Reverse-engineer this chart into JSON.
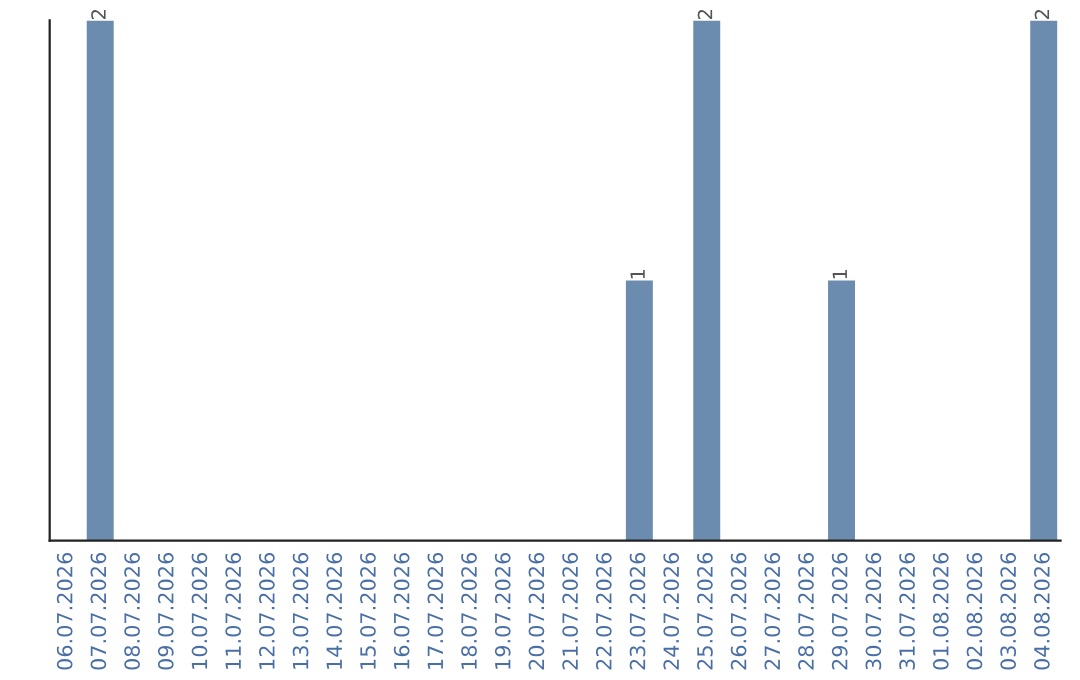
{
  "chart_data": {
    "type": "bar",
    "categories": [
      "06.07.2026",
      "07.07.2026",
      "08.07.2026",
      "09.07.2026",
      "10.07.2026",
      "11.07.2026",
      "12.07.2026",
      "13.07.2026",
      "14.07.2026",
      "15.07.2026",
      "16.07.2026",
      "17.07.2026",
      "18.07.2026",
      "19.07.2026",
      "20.07.2026",
      "21.07.2026",
      "22.07.2026",
      "23.07.2026",
      "24.07.2026",
      "25.07.2026",
      "26.07.2026",
      "27.07.2026",
      "28.07.2026",
      "29.07.2026",
      "30.07.2026",
      "31.07.2026",
      "01.08.2026",
      "02.08.2026",
      "03.08.2026",
      "04.08.2026"
    ],
    "values": [
      0,
      2,
      0,
      0,
      0,
      0,
      0,
      0,
      0,
      0,
      0,
      0,
      0,
      0,
      0,
      0,
      0,
      1,
      0,
      2,
      0,
      0,
      0,
      1,
      0,
      0,
      0,
      0,
      0,
      2
    ],
    "value_labels": [
      null,
      "2",
      null,
      null,
      null,
      null,
      null,
      null,
      null,
      null,
      null,
      null,
      null,
      null,
      null,
      null,
      null,
      "1",
      null,
      "2",
      null,
      null,
      null,
      "1",
      null,
      null,
      null,
      null,
      null,
      "2"
    ],
    "color": "#6b8cae",
    "grid": false,
    "legend": false
  }
}
